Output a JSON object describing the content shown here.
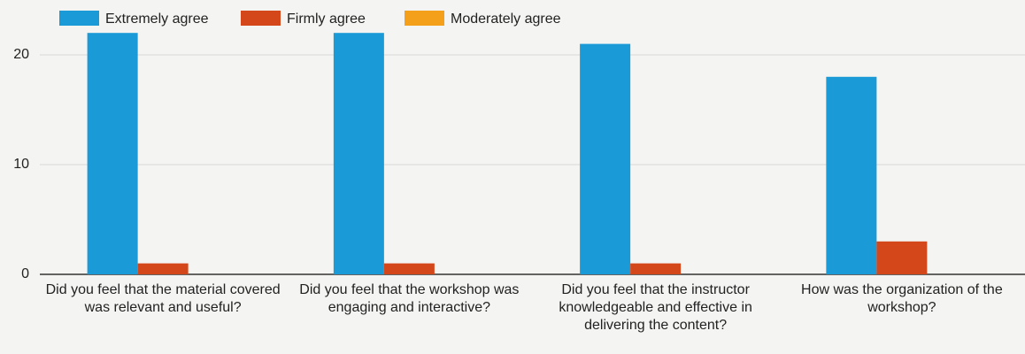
{
  "chart_data": {
    "type": "bar",
    "categories": [
      "Did you feel that the material covered was relevant and useful?",
      "Did you feel that the workshop was engaging and interactive?",
      "Did you feel that the instructor knowledgeable and effective in delivering the content?",
      "How was the organization of the workshop?"
    ],
    "series": [
      {
        "name": "Extremely agree",
        "color": "#1a9bd7",
        "values": [
          22,
          22,
          21,
          18
        ]
      },
      {
        "name": "Firmly agree",
        "color": "#d4471b",
        "values": [
          1,
          1,
          1,
          3
        ]
      },
      {
        "name": "Moderately agree",
        "color": "#f5a01a",
        "values": [
          0,
          0,
          0,
          0
        ]
      }
    ],
    "ylim": [
      0,
      22.5
    ],
    "yticks": [
      0,
      10,
      20
    ],
    "grid": true,
    "legend": "top"
  }
}
